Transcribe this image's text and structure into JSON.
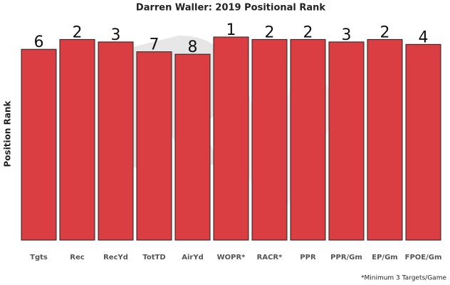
{
  "chart_data": {
    "type": "bar",
    "title": "Darren Waller: 2019 Positional Rank",
    "y_label": "Position Rank",
    "categories": [
      "Tgts",
      "Rec",
      "RecYd",
      "TotTD",
      "AirYd",
      "WOPR*",
      "RACR*",
      "PPR",
      "PPR/Gm",
      "EP/Gm",
      "FPOE/Gm"
    ],
    "values": [
      6,
      2,
      3,
      7,
      8,
      1,
      2,
      2,
      3,
      2,
      4
    ],
    "color": "#da3e42",
    "footnote": "*Minimum 3 Targets/Game"
  }
}
